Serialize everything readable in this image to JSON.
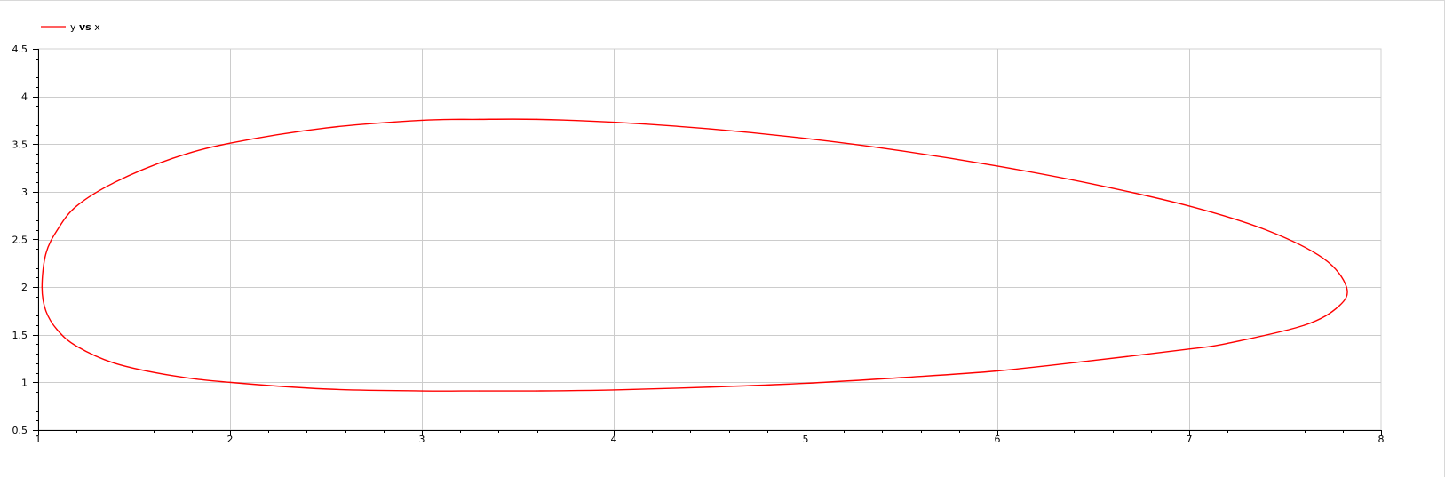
{
  "chart_data": {
    "type": "line",
    "legend": {
      "entries": [
        {
          "y": "y",
          "vs": "vs",
          "x": "x",
          "color": "#ff0000"
        }
      ],
      "placement": "top-left"
    },
    "xlim": [
      1,
      8
    ],
    "ylim": [
      0.5,
      4.5
    ],
    "x_ticks": [
      "1",
      "2",
      "3",
      "4",
      "5",
      "6",
      "7",
      "8"
    ],
    "y_ticks": [
      "0.5",
      "1",
      "1.5",
      "2",
      "2.5",
      "3",
      "3.5",
      "4",
      "4.5"
    ],
    "grid": true,
    "series": [
      {
        "color": "#ff0000",
        "x": [
          1.02,
          1.04,
          1.1,
          1.2,
          1.4,
          1.7,
          2.0,
          2.5,
          3.0,
          3.3,
          3.6,
          4.0,
          4.5,
          5.0,
          5.5,
          6.0,
          6.5,
          7.0,
          7.4,
          7.7,
          7.82,
          7.78,
          7.6,
          7.2,
          7.0,
          6.5,
          6.0,
          5.5,
          5.0,
          4.5,
          4.0,
          3.6,
          3.3,
          3.0,
          2.5,
          2.0,
          1.7,
          1.4,
          1.2,
          1.1,
          1.04,
          1.02
        ],
        "y": [
          2.0,
          2.35,
          2.6,
          2.85,
          3.1,
          3.35,
          3.51,
          3.67,
          3.75,
          3.76,
          3.76,
          3.73,
          3.66,
          3.56,
          3.43,
          3.27,
          3.08,
          2.85,
          2.6,
          2.3,
          2.0,
          1.8,
          1.6,
          1.41,
          1.35,
          1.23,
          1.12,
          1.05,
          0.99,
          0.95,
          0.92,
          0.91,
          0.91,
          0.91,
          0.93,
          1.0,
          1.07,
          1.2,
          1.38,
          1.55,
          1.75,
          2.0
        ]
      }
    ]
  }
}
